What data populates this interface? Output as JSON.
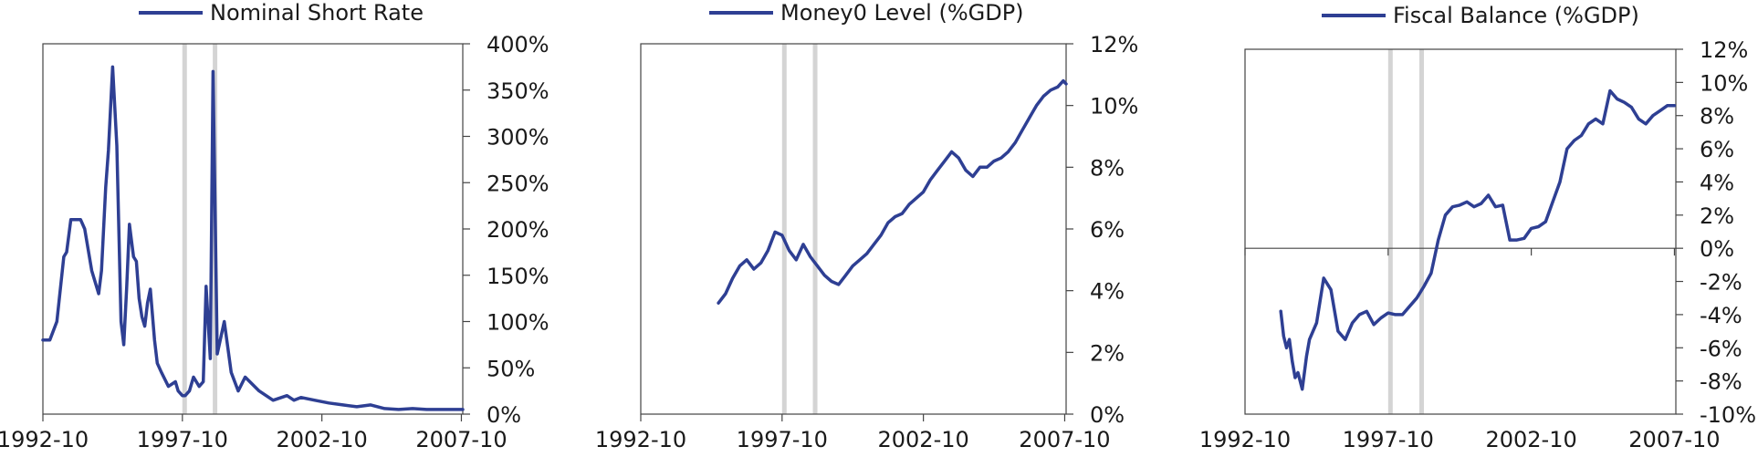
{
  "chart_data": [
    {
      "type": "line",
      "legend": "Nominal Short Rate",
      "legend_position": "top-center",
      "series": [
        {
          "name": "Nominal Short Rate",
          "color": "#2E3F93",
          "x": [
            1992.75,
            1993.0,
            1993.25,
            1993.5,
            1993.6,
            1993.75,
            1993.9,
            1994.0,
            1994.1,
            1994.25,
            1994.5,
            1994.75,
            1994.85,
            1995.0,
            1995.1,
            1995.25,
            1995.4,
            1995.55,
            1995.65,
            1995.75,
            1995.85,
            1996.0,
            1996.1,
            1996.2,
            1996.3,
            1996.4,
            1996.5,
            1996.6,
            1996.75,
            1996.85,
            1997.0,
            1997.25,
            1997.5,
            1997.6,
            1997.75,
            1997.85,
            1998.0,
            1998.15,
            1998.25,
            1998.35,
            1998.5,
            1998.6,
            1998.75,
            1998.85,
            1999.0,
            1999.25,
            1999.5,
            1999.75,
            2000.0,
            2000.5,
            2001.0,
            2001.5,
            2001.75,
            2002.0,
            2002.5,
            2003.0,
            2003.5,
            2004.0,
            2004.5,
            2005.0,
            2005.5,
            2006.0,
            2006.5,
            2007.0,
            2007.5,
            2007.8
          ],
          "values": [
            80,
            80,
            100,
            170,
            175,
            210,
            210,
            210,
            210,
            200,
            155,
            130,
            155,
            245,
            285,
            375,
            290,
            100,
            75,
            135,
            205,
            170,
            165,
            125,
            105,
            95,
            120,
            135,
            80,
            55,
            45,
            30,
            35,
            25,
            20,
            20,
            25,
            40,
            35,
            30,
            35,
            138,
            60,
            370,
            65,
            100,
            45,
            25,
            40,
            25,
            15,
            20,
            15,
            18,
            15,
            12,
            10,
            8,
            10,
            6,
            5,
            6,
            5,
            5,
            5,
            5
          ]
        }
      ],
      "x_ticks": [
        "1992-10",
        "1997-10",
        "2002-10",
        "2007-10"
      ],
      "xlim": [
        1992.75,
        2007.8
      ],
      "y_ticks": [
        "0%",
        "50%",
        "100%",
        "150%",
        "200%",
        "250%",
        "300%",
        "350%",
        "400%"
      ],
      "ylim": [
        0,
        400
      ],
      "shaded_x": [
        1997.83,
        1998.92
      ]
    },
    {
      "type": "line",
      "legend": "Money0 Level (%GDP)",
      "legend_position": "top-center",
      "series": [
        {
          "name": "Money0 Level (%GDP)",
          "color": "#2E3F93",
          "x": [
            1995.5,
            1995.75,
            1996.0,
            1996.25,
            1996.5,
            1996.75,
            1997.0,
            1997.25,
            1997.5,
            1997.75,
            1997.85,
            1998.0,
            1998.25,
            1998.5,
            1998.75,
            1999.0,
            1999.25,
            1999.5,
            1999.75,
            2000.0,
            2000.25,
            2000.5,
            2000.75,
            2001.0,
            2001.25,
            2001.5,
            2001.75,
            2002.0,
            2002.25,
            2002.5,
            2002.75,
            2003.0,
            2003.25,
            2003.5,
            2003.75,
            2004.0,
            2004.25,
            2004.5,
            2004.75,
            2005.0,
            2005.25,
            2005.5,
            2005.75,
            2006.0,
            2006.25,
            2006.5,
            2006.75,
            2007.0,
            2007.25,
            2007.5,
            2007.7,
            2007.8
          ],
          "values": [
            3.6,
            3.9,
            4.4,
            4.8,
            5.0,
            4.7,
            4.9,
            5.3,
            5.9,
            5.8,
            5.6,
            5.3,
            5.0,
            5.5,
            5.1,
            4.8,
            4.5,
            4.3,
            4.2,
            4.5,
            4.8,
            5.0,
            5.2,
            5.5,
            5.8,
            6.2,
            6.4,
            6.5,
            6.8,
            7.0,
            7.2,
            7.6,
            7.9,
            8.2,
            8.5,
            8.3,
            7.9,
            7.7,
            8.0,
            8.0,
            8.2,
            8.3,
            8.5,
            8.8,
            9.2,
            9.6,
            10.0,
            10.3,
            10.5,
            10.6,
            10.8,
            10.7
          ]
        }
      ],
      "x_ticks": [
        "1992-10",
        "1997-10",
        "2002-10",
        "2007-10"
      ],
      "xlim": [
        1992.75,
        2007.8
      ],
      "y_ticks": [
        "0%",
        "2%",
        "4%",
        "6%",
        "8%",
        "10%",
        "12%"
      ],
      "ylim": [
        0,
        12
      ],
      "shaded_x": [
        1997.83,
        1998.92
      ]
    },
    {
      "type": "line",
      "legend": "Fiscal Balance (%GDP)",
      "legend_position": "top-center",
      "series": [
        {
          "name": "Fiscal Balance (%GDP)",
          "color": "#2E3F93",
          "x": [
            1994.0,
            1994.1,
            1994.2,
            1994.3,
            1994.4,
            1994.5,
            1994.6,
            1994.75,
            1994.9,
            1995.0,
            1995.25,
            1995.5,
            1995.75,
            1996.0,
            1996.25,
            1996.5,
            1996.75,
            1997.0,
            1997.25,
            1997.5,
            1997.75,
            1998.0,
            1998.25,
            1998.5,
            1998.75,
            1999.0,
            1999.25,
            1999.5,
            1999.75,
            2000.0,
            2000.25,
            2000.5,
            2000.75,
            2001.0,
            2001.25,
            2001.5,
            2001.75,
            2002.0,
            2002.25,
            2002.5,
            2002.75,
            2003.0,
            2003.25,
            2003.5,
            2003.75,
            2004.0,
            2004.25,
            2004.5,
            2004.75,
            2005.0,
            2005.25,
            2005.5,
            2005.75,
            2006.0,
            2006.25,
            2006.5,
            2006.75,
            2007.0,
            2007.25,
            2007.5,
            2007.6,
            2007.7,
            2007.75
          ],
          "values": [
            -3.8,
            -5.3,
            -6.0,
            -5.5,
            -6.8,
            -7.8,
            -7.5,
            -8.5,
            -6.5,
            -5.5,
            -4.5,
            -1.8,
            -2.5,
            -5.0,
            -5.5,
            -4.5,
            -4.0,
            -3.8,
            -4.6,
            -4.2,
            -3.9,
            -4.0,
            -4.0,
            -3.5,
            -3.0,
            -2.3,
            -1.5,
            0.5,
            2.0,
            2.5,
            2.6,
            2.8,
            2.5,
            2.7,
            3.2,
            2.5,
            2.6,
            0.5,
            0.5,
            0.6,
            1.2,
            1.3,
            1.6,
            2.8,
            4.0,
            6.0,
            6.5,
            6.8,
            7.5,
            7.8,
            7.5,
            9.5,
            9.0,
            8.8,
            8.5,
            7.8,
            7.5,
            8.0,
            8.3,
            8.6,
            8.6,
            8.6,
            8.6
          ]
        }
      ],
      "x_ticks": [
        "1992-10",
        "1997-10",
        "2002-10",
        "2007-10"
      ],
      "xlim": [
        1992.75,
        2007.8
      ],
      "y_ticks": [
        "-10%",
        "-8%",
        "-6%",
        "-4%",
        "-2%",
        "0%",
        "2%",
        "4%",
        "6%",
        "8%",
        "10%",
        "12%"
      ],
      "ylim": [
        -10,
        12
      ],
      "shaded_x": [
        1997.83,
        1998.92
      ]
    }
  ]
}
